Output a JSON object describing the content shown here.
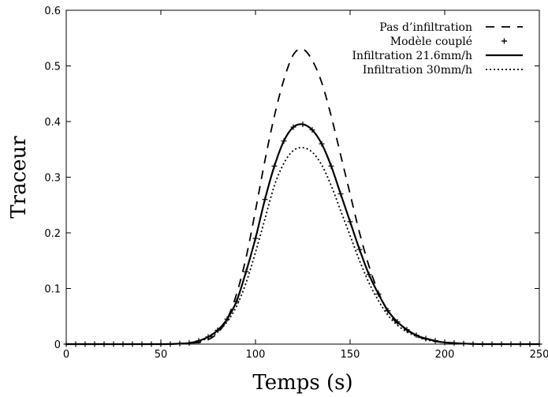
{
  "chart_data": {
    "type": "line",
    "title": "",
    "xlabel": "Temps (s)",
    "ylabel": "Traceur",
    "xlim": [
      0,
      250
    ],
    "ylim": [
      0,
      0.6
    ],
    "xticks": [
      0,
      50,
      100,
      150,
      200,
      250
    ],
    "yticks": [
      0,
      0.1,
      0.2,
      0.3,
      0.4,
      0.5,
      0.6
    ],
    "xtick_labels": [
      "0",
      "50",
      "100",
      "150",
      "200",
      "250"
    ],
    "ytick_labels": [
      "0",
      "0.1",
      "0.2",
      "0.3",
      "0.4",
      "0.5",
      "0.6"
    ],
    "grid": false,
    "legend_position": "top-right",
    "series": [
      {
        "name": "Pas d’infiltration",
        "style": "dashed",
        "color": "#000000",
        "x": [
          0,
          50,
          60,
          70,
          75,
          80,
          85,
          90,
          95,
          100,
          105,
          110,
          115,
          120,
          125,
          130,
          135,
          140,
          145,
          150,
          155,
          160,
          165,
          170,
          175,
          180,
          185,
          190,
          195,
          200,
          210,
          220,
          250
        ],
        "y": [
          0,
          0,
          0.001,
          0.003,
          0.008,
          0.02,
          0.045,
          0.09,
          0.155,
          0.24,
          0.33,
          0.41,
          0.475,
          0.52,
          0.53,
          0.51,
          0.47,
          0.41,
          0.34,
          0.27,
          0.2,
          0.14,
          0.093,
          0.058,
          0.037,
          0.025,
          0.015,
          0.009,
          0.005,
          0.003,
          0.001,
          0,
          0
        ]
      },
      {
        "name": "Modèle couplé",
        "style": "markers",
        "marker": "+",
        "color": "#000000",
        "x": [
          0,
          5,
          10,
          15,
          20,
          25,
          30,
          35,
          40,
          45,
          50,
          55,
          60,
          65,
          70,
          75,
          80,
          85,
          90,
          95,
          100,
          105,
          110,
          115,
          120,
          125,
          130,
          135,
          140,
          145,
          150,
          155,
          160,
          165,
          170,
          175,
          180,
          185,
          190,
          195,
          200,
          205,
          210,
          215,
          220,
          225,
          230,
          235,
          240,
          245,
          250
        ],
        "y": [
          0,
          0,
          0,
          0,
          0,
          0,
          0,
          0,
          0,
          0,
          0,
          0,
          0.001,
          0.002,
          0.006,
          0.013,
          0.025,
          0.045,
          0.077,
          0.13,
          0.19,
          0.26,
          0.32,
          0.365,
          0.39,
          0.395,
          0.385,
          0.36,
          0.32,
          0.27,
          0.22,
          0.17,
          0.125,
          0.09,
          0.06,
          0.04,
          0.026,
          0.016,
          0.01,
          0.006,
          0.003,
          0.002,
          0.001,
          0,
          0,
          0,
          0,
          0,
          0,
          0,
          0
        ]
      },
      {
        "name": "Infiltration 21.6mm/h",
        "style": "solid",
        "color": "#000000",
        "x": [
          0,
          50,
          60,
          65,
          70,
          75,
          80,
          85,
          90,
          95,
          100,
          105,
          110,
          115,
          120,
          125,
          130,
          135,
          140,
          145,
          150,
          155,
          160,
          165,
          170,
          175,
          180,
          185,
          190,
          195,
          200,
          210,
          220,
          250
        ],
        "y": [
          0,
          0,
          0.001,
          0.002,
          0.006,
          0.013,
          0.025,
          0.045,
          0.077,
          0.13,
          0.19,
          0.26,
          0.32,
          0.365,
          0.39,
          0.395,
          0.385,
          0.36,
          0.32,
          0.27,
          0.22,
          0.17,
          0.125,
          0.09,
          0.06,
          0.04,
          0.026,
          0.016,
          0.01,
          0.006,
          0.003,
          0.001,
          0,
          0
        ]
      },
      {
        "name": "Infiltration 30mm/h",
        "style": "dotted",
        "color": "#000000",
        "x": [
          0,
          50,
          60,
          65,
          70,
          75,
          80,
          85,
          90,
          95,
          100,
          105,
          110,
          115,
          120,
          125,
          130,
          135,
          140,
          145,
          150,
          155,
          160,
          165,
          170,
          175,
          180,
          185,
          190,
          195,
          200,
          210,
          220,
          250
        ],
        "y": [
          0,
          0,
          0.001,
          0.002,
          0.005,
          0.011,
          0.022,
          0.04,
          0.068,
          0.11,
          0.165,
          0.225,
          0.285,
          0.325,
          0.348,
          0.353,
          0.345,
          0.322,
          0.285,
          0.24,
          0.195,
          0.15,
          0.11,
          0.078,
          0.052,
          0.034,
          0.022,
          0.014,
          0.008,
          0.005,
          0.003,
          0.001,
          0,
          0
        ]
      }
    ]
  }
}
